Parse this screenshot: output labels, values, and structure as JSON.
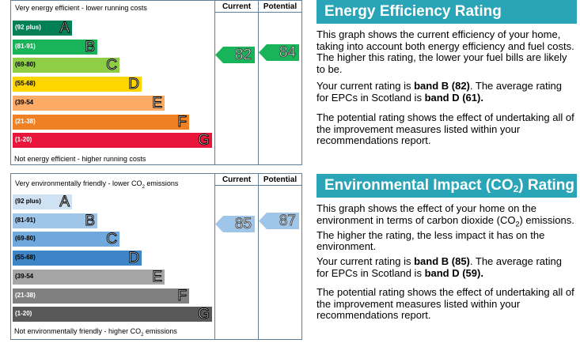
{
  "energy": {
    "header": "Very energy efficient - lower running costs",
    "footer": "Not energy efficient - higher running costs",
    "col_current": "Current",
    "col_potential": "Potential",
    "bands": [
      {
        "range": "(92 plus)",
        "letter": "A",
        "color": "#008054"
      },
      {
        "range": "(81-91)",
        "letter": "B",
        "color": "#19b459"
      },
      {
        "range": "(69-80)",
        "letter": "C",
        "color": "#8dce46"
      },
      {
        "range": "(55-68)",
        "letter": "D",
        "color": "#ffd500"
      },
      {
        "range": "(39-54",
        "letter": "E",
        "color": "#fcaa65"
      },
      {
        "range": "(21-38)",
        "letter": "F",
        "color": "#ef8023"
      },
      {
        "range": "(1-20)",
        "letter": "G",
        "color": "#e9153b"
      }
    ],
    "current": "82",
    "potential": "84",
    "arrow_color": "#19b459"
  },
  "impact": {
    "header_pre": "Very environmentally friendly - lower CO",
    "header_sub": "2",
    "header_post": " emissions",
    "footer_pre": "Not environmentally friendly - higher CO",
    "footer_sub": "2",
    "footer_post": " emissions",
    "col_current": "Current",
    "col_potential": "Potential",
    "bands": [
      {
        "range": "(92 plus)",
        "letter": "A",
        "color": "#cfe2f3"
      },
      {
        "range": "(81-91)",
        "letter": "B",
        "color": "#9fc5e8"
      },
      {
        "range": "(69-80)",
        "letter": "C",
        "color": "#6fa8dc"
      },
      {
        "range": "(55-68)",
        "letter": "D",
        "color": "#3d85c6"
      },
      {
        "range": "(39-54",
        "letter": "E",
        "color": "#a6a6a6"
      },
      {
        "range": "(21-38)",
        "letter": "F",
        "color": "#808080"
      },
      {
        "range": "(1-20)",
        "letter": "G",
        "color": "#595959"
      }
    ],
    "current": "85",
    "potential": "87",
    "arrow_color": "#9fc5e8"
  },
  "panel1": {
    "title": "Energy Efficiency Rating",
    "title_bg": "#2aa5b7",
    "p1": "This graph shows the current efficiency of your home, taking into account both energy efficiency and fuel costs. The higher this rating, the lower your fuel bills are likely to be.",
    "p2_pre": "Your current rating is ",
    "p2_b1": "band B (82)",
    "p2_mid": ". The average rating for EPCs in Scotland is ",
    "p2_b2": "band D (61).",
    "p3": "The potential rating shows the effect of undertaking all of the improvement measures listed within your recommendations report."
  },
  "panel2": {
    "title_pre": "Environmental Impact (CO",
    "title_sub": "2",
    "title_post": ") Rating",
    "title_bg": "#2aa5b7",
    "p1_pre": "This graph shows the effect of your home on the environment in terms of carbon dioxide (CO",
    "p1_sub": "2",
    "p1_post": ") emissions. The higher the rating, the less impact it has on the environment.",
    "p2_pre": "Your current rating is ",
    "p2_b1": "band B (85)",
    "p2_mid": ". The average rating for EPCs in Scotland is ",
    "p2_b2": "band D (59).",
    "p3": "The potential rating shows the effect of undertaking all of the improvement measures listed within your recommendations report."
  }
}
